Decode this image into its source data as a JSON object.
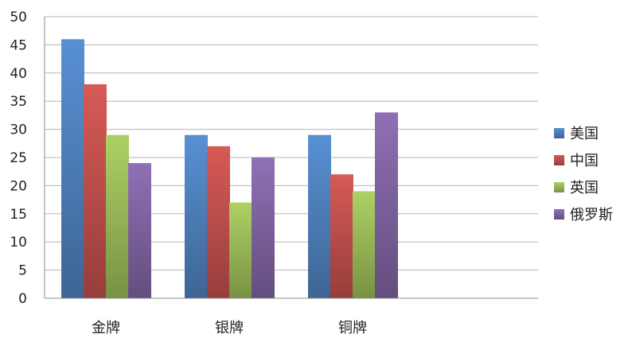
{
  "chart_data": {
    "type": "bar",
    "categories": [
      "金牌",
      "银牌",
      "铜牌"
    ],
    "series": [
      {
        "name": "美国",
        "values": [
          46,
          29,
          29
        ],
        "color": "#4f81bd"
      },
      {
        "name": "中国",
        "values": [
          38,
          27,
          22
        ],
        "color": "#c0504d"
      },
      {
        "name": "英国",
        "values": [
          29,
          17,
          19
        ],
        "color": "#9bbb59"
      },
      {
        "name": "俄罗斯",
        "values": [
          24,
          25,
          33
        ],
        "color": "#8064a2"
      }
    ],
    "ylim": [
      0,
      50
    ],
    "yticks": [
      0,
      5,
      10,
      15,
      20,
      25,
      30,
      35,
      40,
      45,
      50
    ],
    "grid": true,
    "legend": "right",
    "title": "",
    "xlabel": "",
    "ylabel": ""
  }
}
